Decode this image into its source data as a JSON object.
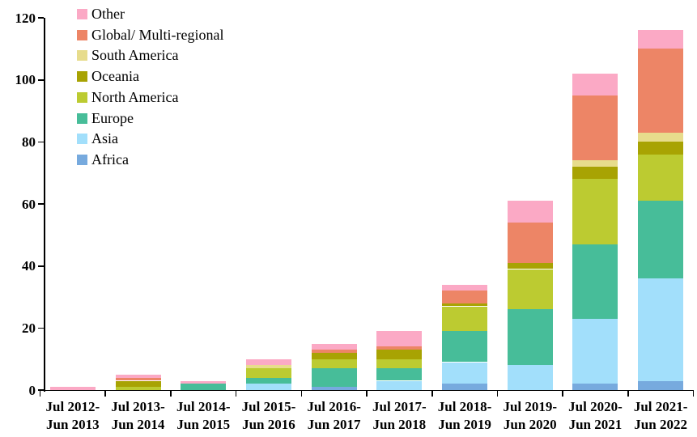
{
  "chart_data": {
    "type": "bar",
    "stacked": true,
    "title": "",
    "xlabel": "",
    "ylabel": "",
    "y_axis": {
      "min": 0,
      "max": 120,
      "tick_step": 20,
      "ticks": [
        0,
        20,
        40,
        60,
        80,
        100,
        120
      ]
    },
    "grid": false,
    "legend_position": "top-left",
    "legend_order_top_to_bottom": [
      "Other",
      "Global/ Multi-regional",
      "South America",
      "Oceania",
      "North America",
      "Europe",
      "Asia",
      "Africa"
    ],
    "categories": [
      {
        "line1": "Jul 2012-",
        "line2": "Jun 2013"
      },
      {
        "line1": "Jul 2013-",
        "line2": "Jun 2014"
      },
      {
        "line1": "Jul 2014-",
        "line2": "Jun 2015"
      },
      {
        "line1": "Jul 2015-",
        "line2": "Jun 2016"
      },
      {
        "line1": "Jul 2016-",
        "line2": "Jun 2017"
      },
      {
        "line1": "Jul 2017-",
        "line2": "Jun 2018"
      },
      {
        "line1": "Jul 2018-",
        "line2": "Jun 2019"
      },
      {
        "line1": "Jul 2019-",
        "line2": "Jun 2020"
      },
      {
        "line1": "Jul 2020-",
        "line2": "Jun 2021"
      },
      {
        "line1": "Jul 2021-",
        "line2": "Jun 2022"
      }
    ],
    "series_bottom_to_top": [
      {
        "name": "Africa",
        "color": "#77AADE",
        "values": [
          0,
          0,
          0,
          0,
          1,
          0,
          2,
          0,
          2,
          3
        ]
      },
      {
        "name": "Asia",
        "color": "#A2DFFB",
        "values": [
          0,
          0,
          0,
          2,
          0,
          3,
          7,
          8,
          21,
          33
        ]
      },
      {
        "name": "Europe",
        "color": "#47BD99",
        "values": [
          0,
          0,
          2,
          2,
          6,
          4,
          10,
          18,
          24,
          25
        ]
      },
      {
        "name": "North America",
        "color": "#BCCB31",
        "values": [
          0,
          1,
          0,
          3,
          3,
          3,
          8,
          13,
          21,
          15
        ]
      },
      {
        "name": "Oceania",
        "color": "#A8A303",
        "values": [
          0,
          2,
          0,
          0,
          2,
          3,
          1,
          2,
          4,
          4
        ]
      },
      {
        "name": "South America",
        "color": "#E7DC8C",
        "values": [
          0,
          0,
          0,
          1,
          0,
          0,
          0,
          0,
          2,
          3
        ]
      },
      {
        "name": "Global/ Multi-regional",
        "color": "#ED8566",
        "values": [
          0,
          1,
          0,
          0,
          1,
          1,
          4,
          13,
          21,
          27
        ]
      },
      {
        "name": "Other",
        "color": "#FBA9C5",
        "values": [
          1,
          1,
          1,
          2,
          2,
          5,
          2,
          7,
          7,
          6
        ]
      }
    ],
    "axis_color": "#000000",
    "text_color": "#000000"
  }
}
